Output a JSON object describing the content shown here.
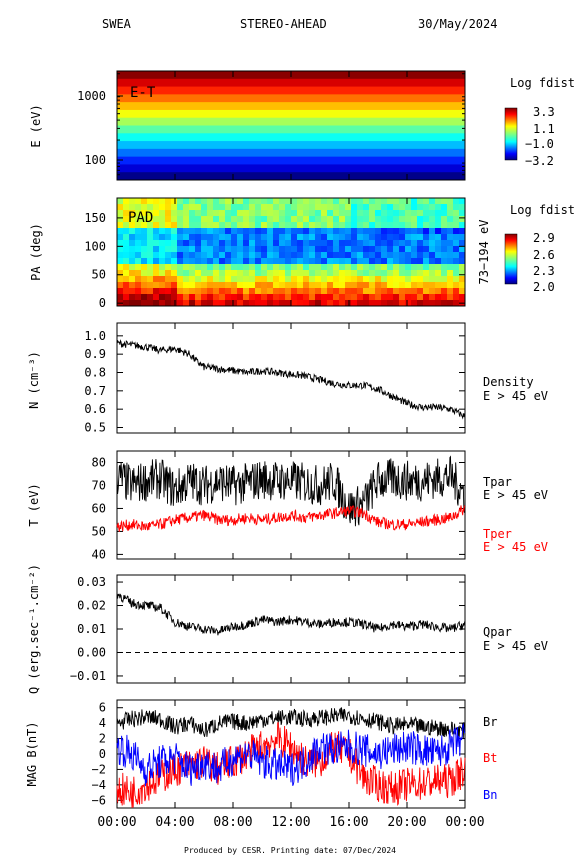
{
  "header": {
    "instrument": "SWEA",
    "spacecraft": "STEREO-AHEAD",
    "date": "30/May/2024"
  },
  "footer": "Produced by CESR.   Printing date: 07/Dec/2024",
  "x_axis": {
    "range_hours": [
      0,
      24
    ],
    "ticks": [
      0,
      4,
      8,
      12,
      16,
      20,
      24
    ],
    "tick_labels": [
      "00:00",
      "04:00",
      "08:00",
      "12:00",
      "16:00",
      "20:00",
      "00:00"
    ]
  },
  "colors": {
    "black": "#000000",
    "red": "#ff0000",
    "blue": "#0000ff"
  },
  "chart_data": [
    {
      "type": "heatmap",
      "panel_label": "E-T",
      "ylabel": "E (eV)",
      "y_scale": "log",
      "y_ticks": [
        100,
        1000
      ],
      "y_tick_labels": [
        "100",
        "1000"
      ],
      "ylim": [
        50,
        2200
      ],
      "colorbar": {
        "title": "Log fdist",
        "labels": [
          "3.3",
          "1.1",
          "−1.0",
          "−3.2"
        ],
        "range": [
          -3.2,
          3.3
        ]
      }
    },
    {
      "type": "heatmap",
      "panel_label": "PAD",
      "ylabel": "PA (deg)",
      "right_label": "73−194 eV",
      "y_ticks": [
        0,
        50,
        100,
        150
      ],
      "y_tick_labels": [
        "0",
        "50",
        "100",
        "150"
      ],
      "ylim": [
        -5,
        185
      ],
      "colorbar": {
        "title": "Log fdist",
        "labels": [
          "2.9",
          "2.6",
          "2.3",
          "2.0"
        ],
        "range": [
          2.0,
          2.9
        ]
      }
    },
    {
      "type": "line",
      "ylabel": "N (cm⁻³)",
      "y_ticks": [
        0.5,
        0.6,
        0.7,
        0.8,
        0.9,
        1.0
      ],
      "y_tick_labels": [
        "0.5",
        "0.6",
        "0.7",
        "0.8",
        "0.9",
        "1.0"
      ],
      "ylim": [
        0.47,
        1.07
      ],
      "series": [
        {
          "name": "Density",
          "name2": "E > 45 eV",
          "color": "#000000",
          "x": [
            0,
            1,
            2,
            3,
            4,
            5,
            5.5,
            6,
            7,
            8,
            9,
            10,
            11,
            12,
            13,
            14,
            15,
            16,
            17,
            18,
            19,
            20,
            21,
            22,
            23,
            24
          ],
          "y": [
            0.96,
            0.95,
            0.94,
            0.92,
            0.93,
            0.9,
            0.86,
            0.83,
            0.82,
            0.81,
            0.8,
            0.81,
            0.8,
            0.79,
            0.78,
            0.76,
            0.74,
            0.73,
            0.73,
            0.71,
            0.67,
            0.63,
            0.61,
            0.61,
            0.6,
            0.56
          ]
        }
      ]
    },
    {
      "type": "line",
      "ylabel": "T (eV)",
      "y_ticks": [
        40,
        50,
        60,
        70,
        80
      ],
      "y_tick_labels": [
        "40",
        "50",
        "60",
        "70",
        "80"
      ],
      "ylim": [
        38,
        85
      ],
      "series": [
        {
          "name": "Tpar",
          "name2": "E > 45 eV",
          "color": "#000000",
          "x": [
            0,
            1,
            2,
            3,
            4,
            5,
            6,
            7,
            8,
            9,
            10,
            11,
            12,
            13,
            14,
            15,
            16,
            17,
            18,
            19,
            20,
            21,
            22,
            23,
            24
          ],
          "y": [
            74,
            70,
            72,
            73,
            68,
            72,
            70,
            72,
            70,
            71,
            73,
            72,
            72,
            71,
            70,
            72,
            60,
            62,
            72,
            73,
            72,
            72,
            73,
            74,
            66
          ]
        },
        {
          "name": "Tper",
          "name2": "E > 45 eV",
          "color": "#ff0000",
          "x": [
            0,
            1,
            2,
            3,
            4,
            5,
            6,
            7,
            8,
            9,
            10,
            11,
            12,
            13,
            14,
            15,
            16,
            17,
            18,
            19,
            20,
            21,
            22,
            23,
            24
          ],
          "y": [
            52,
            53,
            52,
            53,
            55,
            56,
            57,
            55,
            55,
            56,
            55,
            56,
            57,
            56,
            57,
            58,
            59,
            58,
            54,
            53,
            53,
            54,
            55,
            56,
            60
          ]
        }
      ]
    },
    {
      "type": "line",
      "ylabel": "Q (erg.sec⁻¹.cm⁻²)",
      "y_ticks": [
        -0.01,
        0.0,
        0.01,
        0.02,
        0.03
      ],
      "y_tick_labels": [
        "−0.01",
        "0.00",
        "0.01",
        "0.02",
        "0.03"
      ],
      "ylim": [
        -0.013,
        0.033
      ],
      "zero_line": true,
      "series": [
        {
          "name": "Qpar",
          "name2": "E > 45 eV",
          "color": "#000000",
          "x": [
            0,
            1,
            2,
            3,
            4,
            5,
            6,
            7,
            8,
            9,
            10,
            11,
            12,
            13,
            14,
            15,
            16,
            17,
            18,
            19,
            20,
            21,
            22,
            23,
            24
          ],
          "y": [
            0.025,
            0.021,
            0.02,
            0.019,
            0.013,
            0.011,
            0.01,
            0.009,
            0.011,
            0.012,
            0.014,
            0.013,
            0.014,
            0.013,
            0.012,
            0.013,
            0.013,
            0.012,
            0.01,
            0.012,
            0.011,
            0.012,
            0.011,
            0.01,
            0.012
          ]
        }
      ]
    },
    {
      "type": "line",
      "ylabel": "MAG B(nT)",
      "y_ticks": [
        -6,
        -4,
        -2,
        0,
        2,
        4,
        6
      ],
      "y_tick_labels": [
        "−6",
        "−4",
        "−2",
        "0",
        "2",
        "4",
        "6"
      ],
      "ylim": [
        -7,
        7
      ],
      "series": [
        {
          "name": "Br",
          "color": "#000000",
          "x": [
            0,
            1,
            2,
            3,
            4,
            5,
            6,
            7,
            8,
            9,
            10,
            11,
            12,
            13,
            14,
            15,
            16,
            17,
            18,
            19,
            20,
            21,
            22,
            23,
            24
          ],
          "y": [
            4,
            4.5,
            4.8,
            4.5,
            3.5,
            4,
            3,
            4,
            4.2,
            4,
            4.5,
            4.6,
            4.8,
            4.5,
            4.7,
            4.9,
            5,
            4.6,
            4.2,
            3.6,
            3.8,
            3.5,
            3.4,
            3.2,
            3.0
          ]
        },
        {
          "name": "Bt",
          "color": "#ff0000",
          "x": [
            0,
            1,
            2,
            3,
            4,
            5,
            6,
            7,
            8,
            9,
            10,
            11,
            12,
            13,
            14,
            15,
            16,
            17,
            18,
            19,
            20,
            21,
            22,
            23,
            24
          ],
          "y": [
            -4.5,
            -5,
            -4,
            -3,
            -2,
            -1.5,
            -1,
            -2,
            -1,
            0,
            1,
            2,
            1,
            -1,
            -1,
            1,
            0,
            -3,
            -4,
            -4.5,
            -4,
            -3.8,
            -3.5,
            -3.5,
            -2
          ]
        },
        {
          "name": "Bn",
          "color": "#0000ff",
          "x": [
            0,
            1,
            2,
            3,
            4,
            5,
            6,
            7,
            8,
            9,
            10,
            11,
            12,
            13,
            14,
            15,
            16,
            17,
            18,
            19,
            20,
            21,
            22,
            23,
            24
          ],
          "y": [
            1,
            0,
            -2,
            -1,
            -0.5,
            -2,
            -1,
            -2,
            -0.5,
            0,
            -1,
            -1.5,
            -2,
            -1,
            1,
            0.5,
            1,
            0.5,
            0,
            0.5,
            1,
            0.5,
            0,
            1,
            2
          ]
        }
      ]
    }
  ]
}
